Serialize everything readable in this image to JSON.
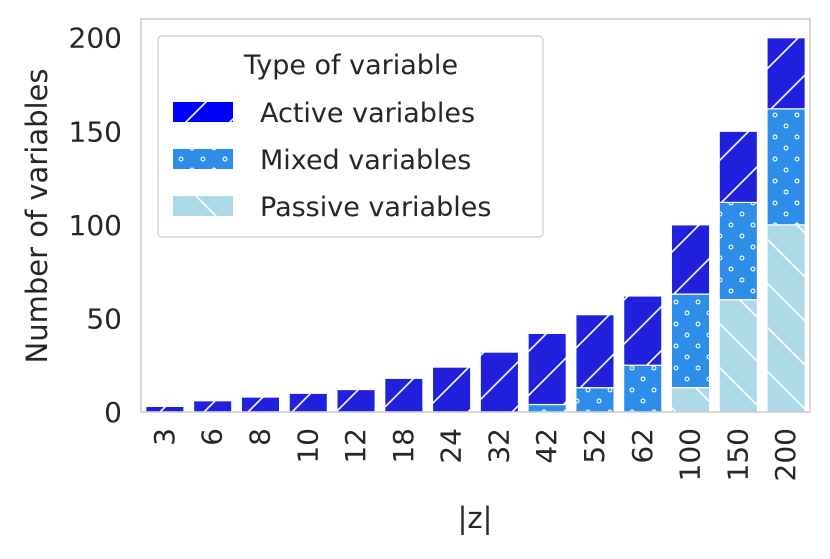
{
  "chart_data": {
    "type": "bar",
    "stacked": true,
    "xlabel": "|z|",
    "ylabel": "Number of variables",
    "categories": [
      "3",
      "6",
      "8",
      "10",
      "12",
      "18",
      "24",
      "32",
      "42",
      "52",
      "62",
      "100",
      "150",
      "200"
    ],
    "ylim": [
      0,
      210
    ],
    "yticks": [
      0,
      50,
      100,
      150,
      200
    ],
    "grid": false,
    "legend": {
      "title": "Type of variable",
      "placement": "top-left"
    },
    "series": [
      {
        "name": "Passive variables",
        "color": "#add8e6",
        "pattern": "back-diagonal-hatch",
        "values": [
          0,
          0,
          0,
          0,
          0,
          0,
          0,
          0,
          0,
          0,
          0,
          13,
          60,
          100
        ]
      },
      {
        "name": "Mixed variables",
        "color": "#2e8de8",
        "pattern": "dots",
        "values": [
          0,
          0,
          0,
          0,
          0,
          0,
          0,
          0,
          4,
          13,
          25,
          50,
          52,
          62
        ]
      },
      {
        "name": "Active variables",
        "color": "#2121dd",
        "legend_color": "#0000ff",
        "pattern": "forward-diagonal-hatch",
        "values": [
          3,
          6,
          8,
          10,
          12,
          18,
          24,
          32,
          38,
          39,
          37,
          37,
          38,
          38
        ]
      }
    ]
  }
}
